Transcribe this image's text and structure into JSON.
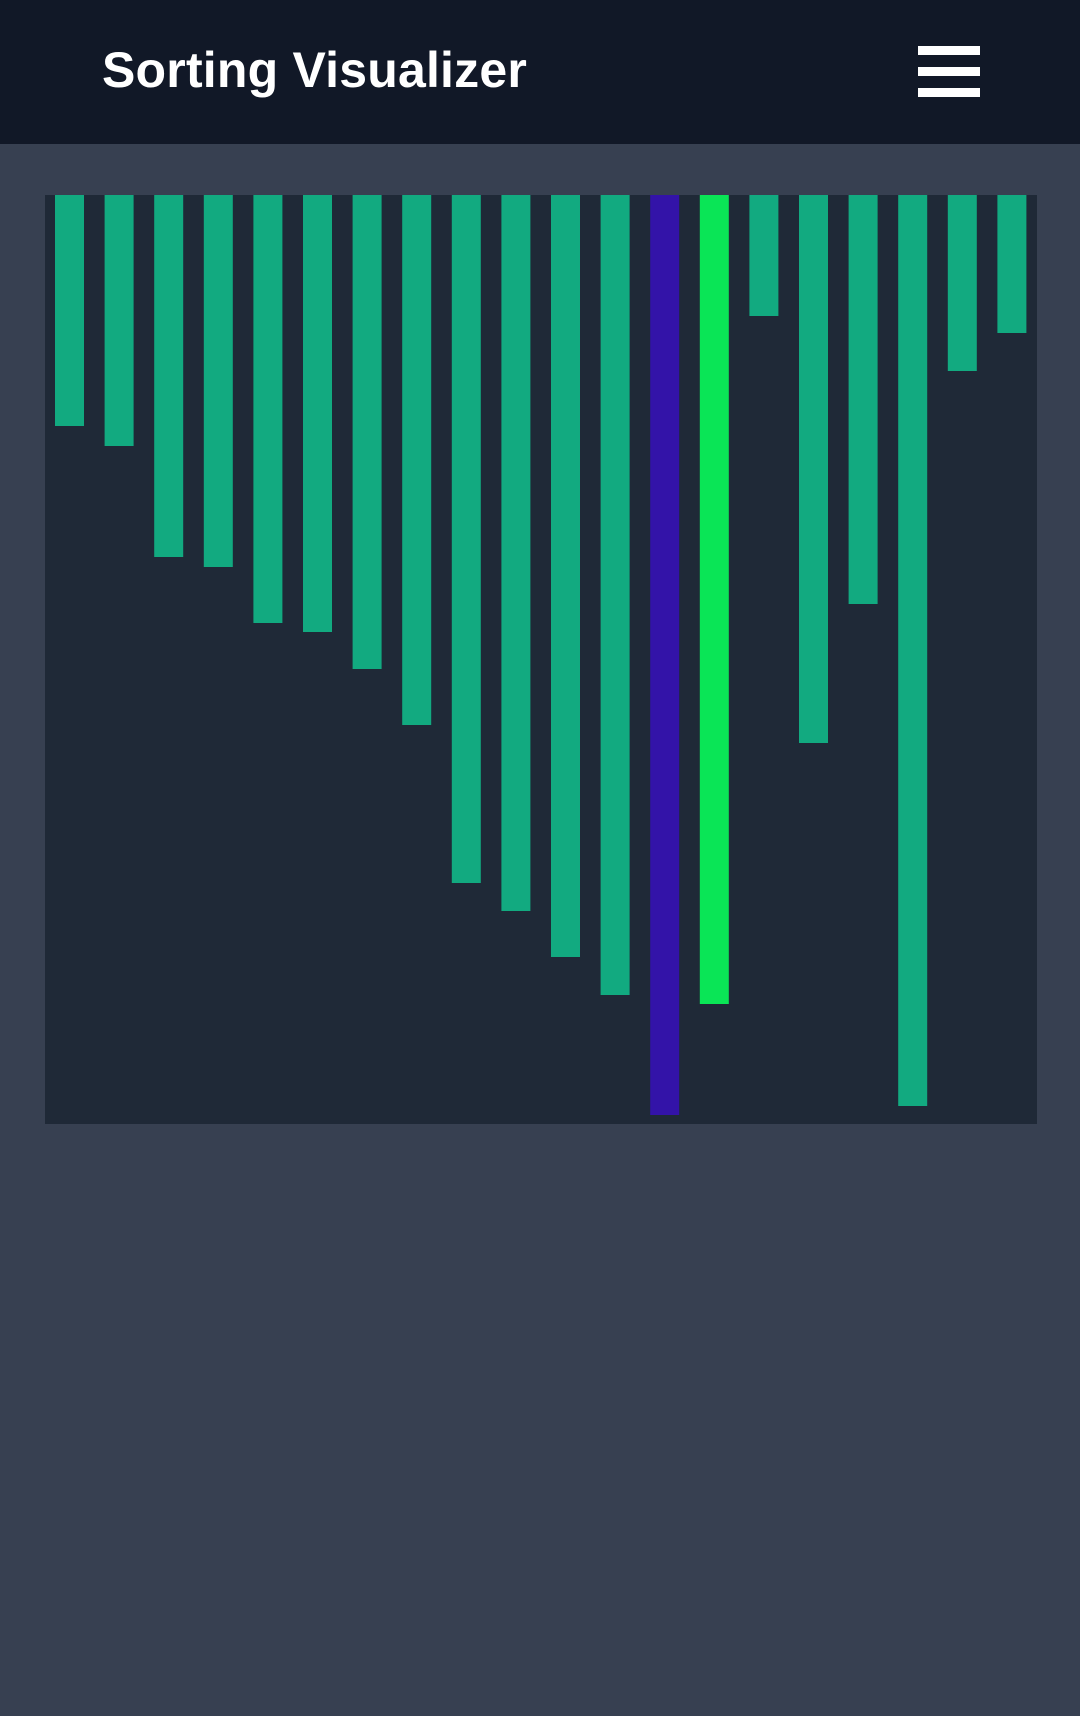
{
  "app_bar": {
    "title": "Sorting Visualizer",
    "menu_icon": "hamburger-menu-icon"
  },
  "colors": {
    "app_bar_bg": "#111827",
    "page_bg": "#374051",
    "panel_bg": "#1f2937",
    "bar_default": "#12aa80",
    "bar_compare": "#3313a8",
    "bar_swap": "#0ae556"
  },
  "chart_data": {
    "type": "bar",
    "orientation": "hanging-from-top",
    "values": [
      231,
      251,
      362,
      372,
      428,
      437,
      474,
      530,
      688,
      716,
      762,
      800,
      920,
      809,
      121,
      548,
      409,
      911,
      176,
      138
    ],
    "states": [
      "default",
      "default",
      "default",
      "default",
      "default",
      "default",
      "default",
      "default",
      "default",
      "default",
      "default",
      "default",
      "compare",
      "swap",
      "default",
      "default",
      "default",
      "default",
      "default",
      "default"
    ],
    "ylim": [
      0,
      929
    ],
    "grid": false
  }
}
